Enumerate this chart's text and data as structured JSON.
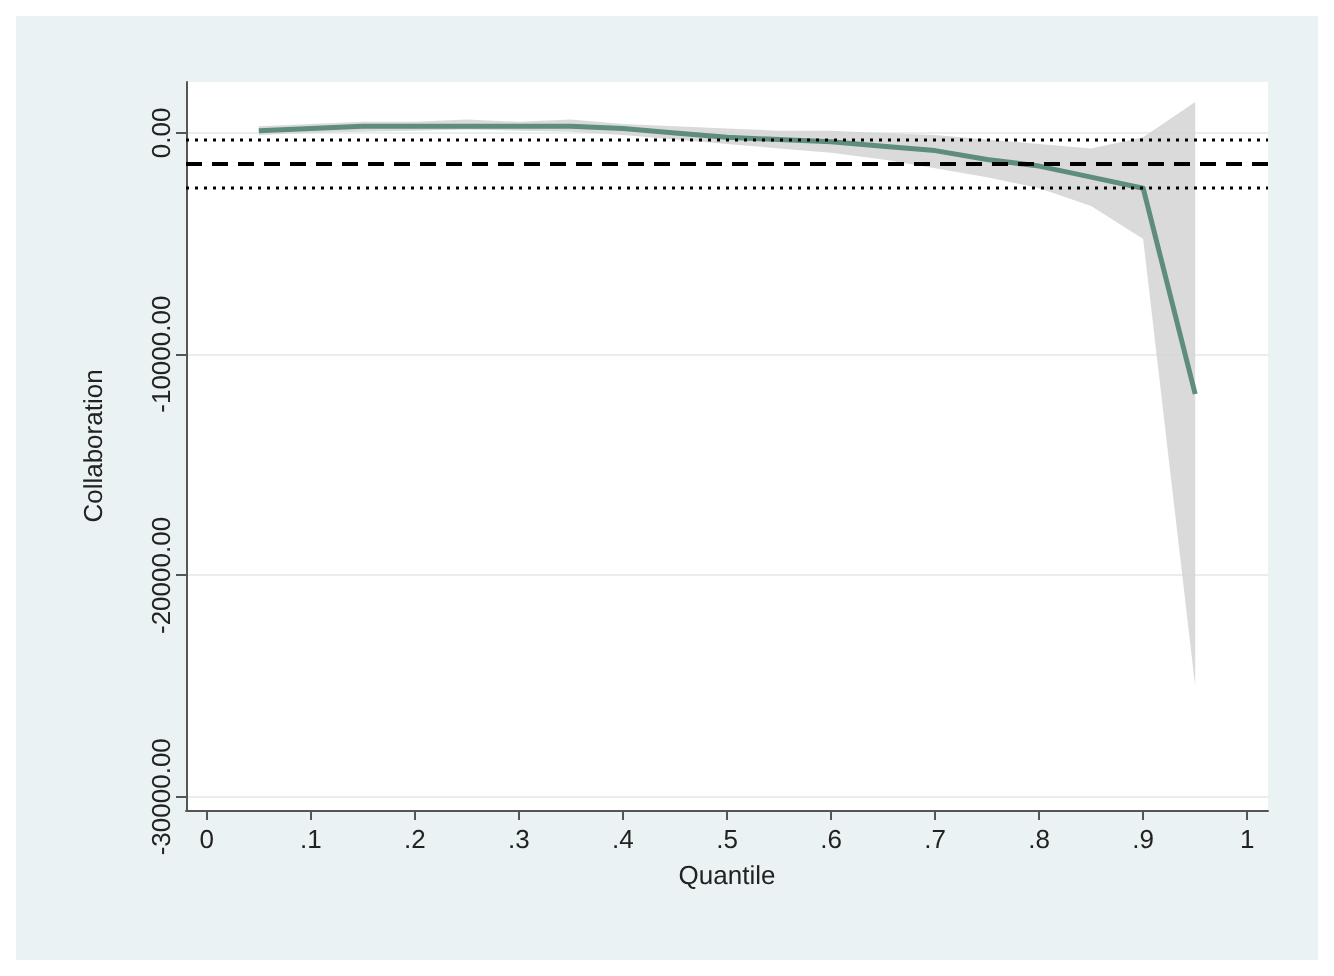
{
  "chart_data": {
    "type": "line",
    "xlabel": "Quantile",
    "ylabel": "Collaboration",
    "x": [
      0.05,
      0.1,
      0.15,
      0.2,
      0.25,
      0.3,
      0.35,
      0.4,
      0.45,
      0.5,
      0.55,
      0.6,
      0.65,
      0.7,
      0.75,
      0.8,
      0.85,
      0.9,
      0.95
    ],
    "series": [
      {
        "color": "#5e8c7e",
        "values": [
          100,
          200,
          300,
          300,
          300,
          300,
          300,
          200,
          0,
          -200,
          -300,
          -400,
          -600,
          -800,
          -1200,
          -1500,
          -2000,
          -2500,
          -11800
        ],
        "lower": [
          -100,
          0,
          50,
          100,
          150,
          100,
          50,
          -100,
          -300,
          -500,
          -700,
          -900,
          -1200,
          -1600,
          -2000,
          -2500,
          -3300,
          -4800,
          -25000
        ],
        "upper": [
          300,
          400,
          500,
          500,
          600,
          500,
          600,
          400,
          300,
          200,
          100,
          100,
          0,
          -100,
          -300,
          -500,
          -700,
          -200,
          1400
        ]
      }
    ],
    "ref_lines": [
      {
        "axis": "y",
        "value": -300,
        "color": "#000000",
        "line_style": "dotted"
      },
      {
        "axis": "y",
        "value": -1400,
        "color": "#000000",
        "line_style": "dashed"
      },
      {
        "axis": "y",
        "value": -2500,
        "color": "#000000",
        "line_style": "dotted"
      }
    ],
    "xlim": [
      -0.02,
      1.02
    ],
    "xticks": [
      0,
      {
        "value": 0.1,
        "label": ".1"
      },
      {
        "value": 0.2,
        "label": ".2"
      },
      {
        "value": 0.3,
        "label": ".3"
      },
      {
        "value": 0.4,
        "label": ".4"
      },
      {
        "value": 0.5,
        "label": ".5"
      },
      {
        "value": 0.6,
        "label": ".6"
      },
      {
        "value": 0.7,
        "label": ".7"
      },
      {
        "value": 0.8,
        "label": ".8"
      },
      {
        "value": 0.9,
        "label": ".9"
      },
      1
    ],
    "ylim": [
      -30600,
      2300
    ],
    "yticks": [
      {
        "value": 0,
        "label": "0.00"
      },
      {
        "value": -10000,
        "label": "-10000.00"
      },
      {
        "value": -20000,
        "label": "-20000.00"
      },
      {
        "value": -30000,
        "label": "-30000.00"
      }
    ],
    "grid": "y"
  }
}
